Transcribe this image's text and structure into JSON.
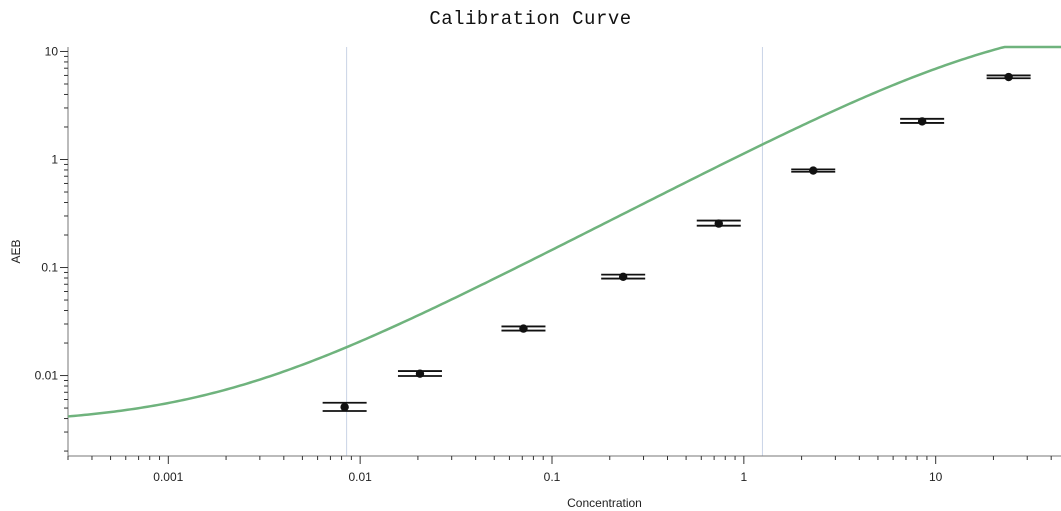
{
  "chart_data": {
    "type": "scatter",
    "title": "Calibration Curve",
    "xlabel": "Concentration",
    "ylabel": "AEB",
    "x_scale": "log",
    "y_scale": "log",
    "xlim": [
      0.0003,
      45
    ],
    "ylim": [
      0.0018,
      11
    ],
    "x_ticks": [
      {
        "value": 0.001,
        "label": "0.001"
      },
      {
        "value": 0.01,
        "label": "0.01"
      },
      {
        "value": 0.1,
        "label": "0.1"
      },
      {
        "value": 1,
        "label": "1"
      },
      {
        "value": 10,
        "label": "10"
      }
    ],
    "y_ticks": [
      {
        "value": 0.01,
        "label": "0.01"
      },
      {
        "value": 0.1,
        "label": "0.1"
      },
      {
        "value": 1,
        "label": "1"
      },
      {
        "value": 10,
        "label": "10"
      }
    ],
    "reference_lines_x": [
      0.0085,
      1.25
    ],
    "grid": false,
    "points": [
      {
        "x": 0.0083,
        "y": 0.0051,
        "y_low": 0.0047,
        "y_high": 0.0056
      },
      {
        "x": 0.0205,
        "y": 0.0104,
        "y_low": 0.0099,
        "y_high": 0.011
      },
      {
        "x": 0.071,
        "y": 0.0272,
        "y_low": 0.0261,
        "y_high": 0.0285
      },
      {
        "x": 0.235,
        "y": 0.082,
        "y_low": 0.079,
        "y_high": 0.086
      },
      {
        "x": 0.74,
        "y": 0.255,
        "y_low": 0.244,
        "y_high": 0.272
      },
      {
        "x": 2.3,
        "y": 0.79,
        "y_low": 0.77,
        "y_high": 0.81
      },
      {
        "x": 8.5,
        "y": 2.25,
        "y_low": 2.18,
        "y_high": 2.38
      },
      {
        "x": 24,
        "y": 5.8,
        "y_low": 5.65,
        "y_high": 6.0
      }
    ],
    "fit_curve": {
      "model": "4-parameter logistic",
      "bottom": 0.0035,
      "top": 23,
      "ec50": 25,
      "hill": 0.92,
      "color": "#6fb37d"
    },
    "marker_color": "#111111",
    "axis_color": "#777777"
  }
}
